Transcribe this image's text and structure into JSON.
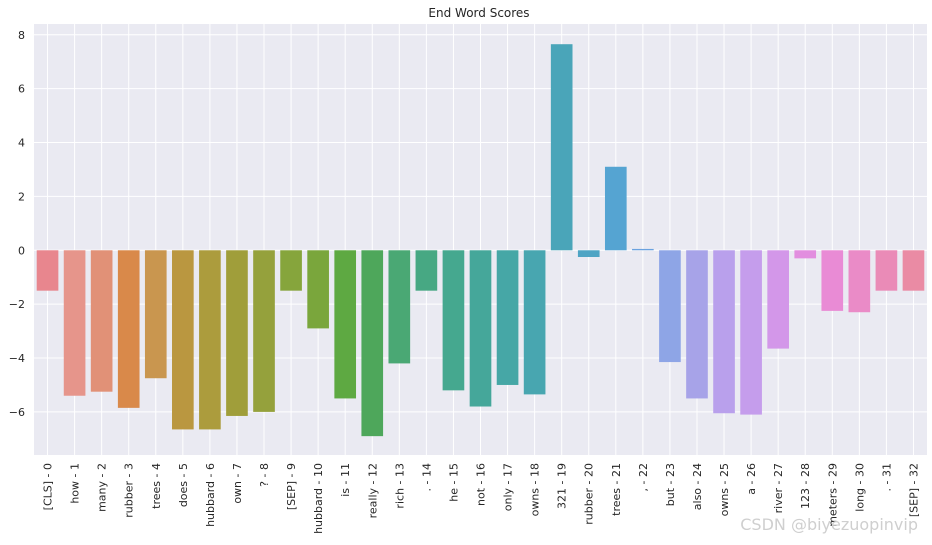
{
  "chart_data": {
    "type": "bar",
    "title": "End Word Scores",
    "xlabel": "",
    "ylabel": "",
    "ylim": [
      -7.6,
      8.4
    ],
    "yticks": [
      -6,
      -4,
      -2,
      0,
      2,
      4,
      6,
      8
    ],
    "grid": true,
    "background": "#eaeaf2",
    "categories": [
      "[CLS] - 0",
      "how - 1",
      "many - 2",
      "rubber - 3",
      "trees - 4",
      "does - 5",
      "hubbard - 6",
      "own - 7",
      "? - 8",
      "[SEP] - 9",
      "hubbard - 10",
      "is - 11",
      "really - 12",
      "rich - 13",
      ". - 14",
      "he - 15",
      "not - 16",
      "only - 17",
      "owns - 18",
      "321 - 19",
      "rubber - 20",
      "trees - 21",
      ", - 22",
      "but - 23",
      "also - 24",
      "owns - 25",
      "a - 26",
      "river - 27",
      "123 - 28",
      "meters - 29",
      "long - 30",
      ". - 31",
      "[SEP] - 32"
    ],
    "values": [
      -1.5,
      -5.4,
      -5.25,
      -5.85,
      -4.75,
      -6.65,
      -6.65,
      -6.15,
      -6.0,
      -1.5,
      -2.9,
      -5.5,
      -6.9,
      -4.2,
      -1.5,
      -5.2,
      -5.8,
      -5.0,
      -5.35,
      7.65,
      -0.25,
      3.1,
      0.05,
      -4.15,
      -5.5,
      -6.05,
      -6.1,
      -3.65,
      -0.3,
      -2.25,
      -2.3,
      -1.5,
      -1.5
    ],
    "colors": [
      "#e8868e",
      "#e6958b",
      "#e19177",
      "#d9894a",
      "#c9964f",
      "#ba9740",
      "#ac9c3d",
      "#a09e3a",
      "#95a13c",
      "#86a53c",
      "#7aa63c",
      "#5ea942",
      "#4ea75b",
      "#4aa874",
      "#47a883",
      "#45a88f",
      "#45a79a",
      "#46a7a6",
      "#48a6b0",
      "#4aa5b9",
      "#4ea4c4",
      "#55a4d2",
      "#6ba2df",
      "#8ea5e6",
      "#a7a3e8",
      "#b9a0ec",
      "#c59dec",
      "#d397e9",
      "#e28edf",
      "#e98bd5",
      "#ea8bc7",
      "#ea8bb7",
      "#ea8ba4"
    ]
  },
  "watermark": "CSDN @biyezuopinvip"
}
